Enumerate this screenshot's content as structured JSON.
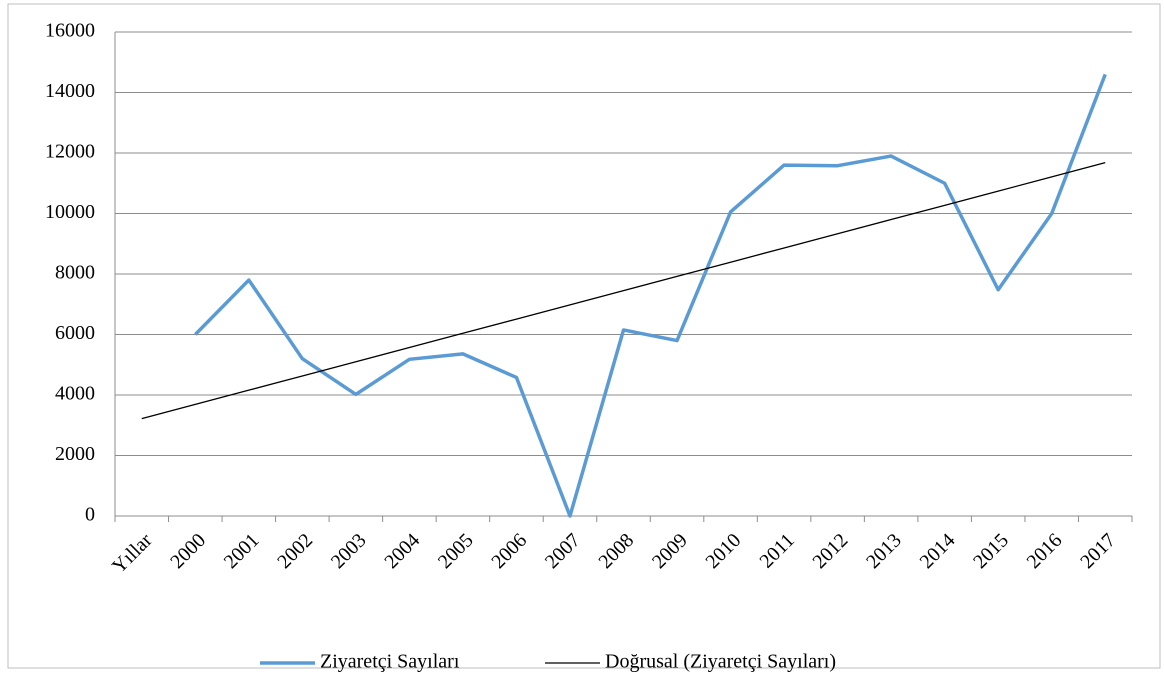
{
  "chart_data": {
    "type": "line",
    "categories": [
      "Yıllar",
      "2000",
      "2001",
      "2002",
      "2003",
      "2004",
      "2005",
      "2006",
      "2007",
      "2008",
      "2009",
      "2010",
      "2011",
      "2012",
      "2013",
      "2014",
      "2015",
      "2016",
      "2017"
    ],
    "series": [
      {
        "name": "Ziyaretçi Sayıları",
        "color": "#5b9bd5",
        "values": [
          null,
          6000,
          7800,
          5200,
          4020,
          5180,
          5360,
          4580,
          0,
          6150,
          5800,
          10050,
          11600,
          11580,
          11900,
          11000,
          7480,
          10000,
          14600
        ]
      },
      {
        "name": "Doğrusal (Ziyaretçi Sayıları)",
        "color": "#000000",
        "values": [
          3220,
          3690,
          4160,
          4630,
          5100,
          5570,
          6040,
          6510,
          6980,
          7450,
          7920,
          8390,
          8860,
          9330,
          9800,
          10270,
          10740,
          11210,
          11680
        ]
      }
    ],
    "ylim": [
      0,
      16000
    ],
    "yticks": [
      0,
      2000,
      4000,
      6000,
      8000,
      10000,
      12000,
      14000,
      16000
    ],
    "grid": true,
    "legend": "bottom"
  }
}
